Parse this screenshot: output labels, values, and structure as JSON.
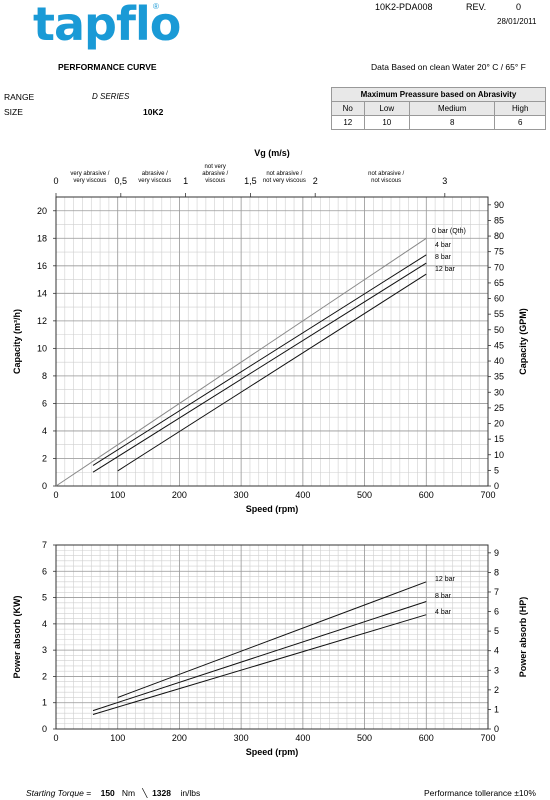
{
  "header": {
    "logo_text": "tapflo",
    "logo_reg": "®",
    "doc_ref": "10K2-PDA008",
    "rev_label": "REV.",
    "rev_value": "0",
    "date": "28/01/2011",
    "title": "PERFORMANCE CURVE",
    "data_note": "Data Based on clean Water 20° C  /  65° F"
  },
  "info": {
    "range_label": "RANGE",
    "range_value": "D SERIES",
    "size_label": "SIZE",
    "size_value": "10K2"
  },
  "abrasivity_table": {
    "title": "Maximum Preassure based on Abrasivity",
    "columns": [
      "No",
      "Low",
      "Medium",
      "High"
    ],
    "values": [
      "12",
      "10",
      "8",
      "6"
    ]
  },
  "footer": {
    "torque_label": "Starting Torque =",
    "torque_nm": "150",
    "torque_nm_unit": "Nm",
    "torque_inlbs": "1328",
    "torque_inlbs_unit": "in/lbs",
    "tolerance": "Performance tollerance ±10%"
  },
  "chart_data": [
    {
      "type": "line",
      "xlabel": "Speed (rpm)",
      "ylabel": "Capacity (m³/h)",
      "y2label": "Capacity (GPM)",
      "top_axis_label": "Vg (m/s)",
      "xlim": [
        0,
        700
      ],
      "ylim": [
        0,
        21
      ],
      "y2lim": [
        0,
        92.5
      ],
      "x_ticks": [
        0,
        100,
        200,
        300,
        400,
        500,
        600,
        700
      ],
      "y_ticks": [
        0,
        2,
        4,
        6,
        8,
        10,
        12,
        14,
        16,
        18,
        20
      ],
      "y2_ticks": [
        0,
        5,
        10,
        15,
        20,
        25,
        30,
        35,
        40,
        45,
        50,
        55,
        60,
        65,
        70,
        75,
        80,
        85,
        90
      ],
      "top_ticks": [
        {
          "label": "0",
          "rpm": 0
        },
        {
          "label": "0,5",
          "rpm": 105
        },
        {
          "label": "1",
          "rpm": 210
        },
        {
          "label": "1,5",
          "rpm": 315
        },
        {
          "label": "2",
          "rpm": 420
        },
        {
          "label": "3",
          "rpm": 630
        }
      ],
      "zones": [
        {
          "label": [
            "very abrasive /",
            "very viscous"
          ],
          "rpm": 55
        },
        {
          "label": [
            "abrasive /",
            "very viscous"
          ],
          "rpm": 160
        },
        {
          "label": [
            "not very",
            "abrasive /",
            "viscous"
          ],
          "rpm": 258
        },
        {
          "label": [
            "not abrasive /",
            "not very viscous"
          ],
          "rpm": 370
        },
        {
          "label": [
            "not abrasive /",
            "not  viscous"
          ],
          "rpm": 535
        }
      ],
      "grid": true,
      "series": [
        {
          "name": "0 bar (Qth)",
          "x": [
            0,
            600
          ],
          "y": [
            0,
            18.0
          ],
          "color": "#888888"
        },
        {
          "name": "4 bar",
          "x": [
            60,
            600
          ],
          "y": [
            1.5,
            16.8
          ],
          "color": "#111111"
        },
        {
          "name": "8 bar",
          "x": [
            60,
            600
          ],
          "y": [
            1.0,
            16.2
          ],
          "color": "#111111"
        },
        {
          "name": "12 bar",
          "x": [
            100,
            600
          ],
          "y": [
            1.1,
            15.4
          ],
          "color": "#111111"
        }
      ]
    },
    {
      "type": "line",
      "xlabel": "Speed (rpm)",
      "ylabel": "Power absorb (KW)",
      "y2label": "Power absorb (HP)",
      "xlim": [
        0,
        700
      ],
      "ylim": [
        0,
        7
      ],
      "y2lim": [
        0,
        9.4
      ],
      "x_ticks": [
        0,
        100,
        200,
        300,
        400,
        500,
        600,
        700
      ],
      "y_ticks": [
        0,
        1,
        2,
        3,
        4,
        5,
        6,
        7
      ],
      "y2_ticks": [
        0,
        1,
        2,
        3,
        4,
        5,
        6,
        7,
        8,
        9
      ],
      "grid": true,
      "series": [
        {
          "name": "12 bar",
          "x": [
            100,
            600
          ],
          "y": [
            1.2,
            5.6
          ],
          "color": "#111111"
        },
        {
          "name": "8 bar",
          "x": [
            60,
            600
          ],
          "y": [
            0.7,
            4.85
          ],
          "color": "#111111"
        },
        {
          "name": "4 bar",
          "x": [
            60,
            600
          ],
          "y": [
            0.55,
            4.35
          ],
          "color": "#111111"
        }
      ]
    }
  ]
}
